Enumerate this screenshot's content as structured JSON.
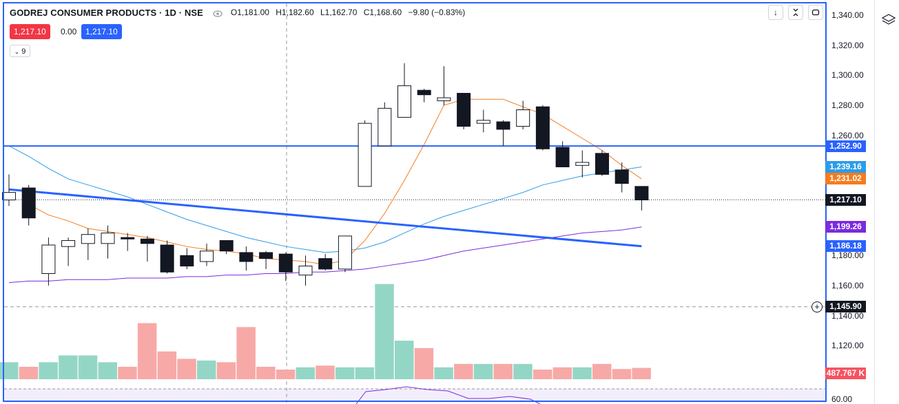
{
  "header": {
    "symbol": "GODREJ CONSUMER PRODUCTS · 1D · NSE",
    "open": "O1,181.00",
    "high": "H1,182.60",
    "low": "L1,162.70",
    "close": "C1,168.60",
    "change": "−9.80 (−0.83%)"
  },
  "pills": {
    "sell": "1,217.10",
    "spread": "0.00",
    "buy": "1,217.10"
  },
  "indicator_count": "9",
  "axis_labels": [
    "1,340.00",
    "1,320.00",
    "1,300.00",
    "1,280.00",
    "1,260.00",
    "1,180.00",
    "1,160.00",
    "1,140.00",
    "1,120.00",
    "60.00"
  ],
  "price_tags": {
    "line_level": "1,252.90",
    "ma_blue": "1,239.16",
    "ma_orange": "1,231.02",
    "last": "1,217.10",
    "ma_purple": "1,199.26",
    "trend": "1,186.18",
    "crosshair": "1,145.90",
    "volume": "487.767 K"
  },
  "colors": {
    "up": "#ffffff",
    "down": "#131722",
    "vol_up": "#94d6c6",
    "vol_down": "#f7a9a7",
    "accent": "#2962ff",
    "orange": "#f57c1f",
    "lightblue": "#2d9ce8",
    "purple": "#7b2bdc"
  },
  "chart_data": {
    "type": "candlestick",
    "ylim": [
      1110,
      1345
    ],
    "candles": [
      {
        "o": 1217,
        "h": 1234,
        "l": 1213,
        "c": 1222
      },
      {
        "o": 1225,
        "h": 1227,
        "l": 1200,
        "c": 1205
      },
      {
        "o": 1168,
        "h": 1192,
        "l": 1160,
        "c": 1187
      },
      {
        "o": 1186,
        "h": 1192,
        "l": 1173,
        "c": 1190
      },
      {
        "o": 1188,
        "h": 1198,
        "l": 1177,
        "c": 1194
      },
      {
        "o": 1188,
        "h": 1200,
        "l": 1178,
        "c": 1195
      },
      {
        "o": 1192,
        "h": 1195,
        "l": 1183,
        "c": 1191
      },
      {
        "o": 1191,
        "h": 1193,
        "l": 1176,
        "c": 1188
      },
      {
        "o": 1187,
        "h": 1190,
        "l": 1168,
        "c": 1169
      },
      {
        "o": 1180,
        "h": 1185,
        "l": 1171,
        "c": 1173
      },
      {
        "o": 1176,
        "h": 1188,
        "l": 1173,
        "c": 1183
      },
      {
        "o": 1190,
        "h": 1190,
        "l": 1181,
        "c": 1183
      },
      {
        "o": 1182,
        "h": 1186,
        "l": 1170,
        "c": 1176
      },
      {
        "o": 1182,
        "h": 1183,
        "l": 1171,
        "c": 1178
      },
      {
        "o": 1181,
        "h": 1182,
        "l": 1163,
        "c": 1169
      },
      {
        "o": 1167,
        "h": 1180,
        "l": 1160,
        "c": 1173
      },
      {
        "o": 1178,
        "h": 1181,
        "l": 1170,
        "c": 1171
      },
      {
        "o": 1171,
        "h": 1192,
        "l": 1169,
        "c": 1193
      },
      {
        "o": 1226,
        "h": 1270,
        "l": 1226,
        "c": 1268
      },
      {
        "o": 1253,
        "h": 1282,
        "l": 1253,
        "c": 1278
      },
      {
        "o": 1272,
        "h": 1308,
        "l": 1272,
        "c": 1293
      },
      {
        "o": 1290,
        "h": 1291,
        "l": 1282,
        "c": 1287
      },
      {
        "o": 1283,
        "h": 1306,
        "l": 1280,
        "c": 1285
      },
      {
        "o": 1288,
        "h": 1288,
        "l": 1264,
        "c": 1266
      },
      {
        "o": 1268,
        "h": 1277,
        "l": 1262,
        "c": 1270
      },
      {
        "o": 1269,
        "h": 1270,
        "l": 1253,
        "c": 1264
      },
      {
        "o": 1266,
        "h": 1283,
        "l": 1264,
        "c": 1277
      },
      {
        "o": 1279,
        "h": 1280,
        "l": 1250,
        "c": 1251
      },
      {
        "o": 1252,
        "h": 1256,
        "l": 1239,
        "c": 1239
      },
      {
        "o": 1240,
        "h": 1250,
        "l": 1232,
        "c": 1242
      },
      {
        "o": 1248,
        "h": 1250,
        "l": 1233,
        "c": 1234
      },
      {
        "o": 1237,
        "h": 1242,
        "l": 1222,
        "c": 1228
      },
      {
        "o": 1226,
        "h": 1226,
        "l": 1210,
        "c": 1217
      }
    ],
    "volume": [
      0.3,
      0.22,
      0.3,
      0.42,
      0.42,
      0.3,
      0.22,
      0.99,
      0.49,
      0.36,
      0.33,
      0.3,
      0.92,
      0.22,
      0.17,
      0.21,
      0.24,
      0.21,
      0.21,
      1.68,
      0.68,
      0.55,
      0.21,
      0.27,
      0.27,
      0.27,
      0.27,
      0.17,
      0.21,
      0.21,
      0.27,
      0.18,
      0.2
    ],
    "volume_max": 1.7,
    "ma_orange": [
      null,
      1214,
      1207,
      1203,
      1198,
      1196,
      1194,
      1192,
      1189,
      1186,
      1184,
      1183,
      1181,
      1178,
      1177,
      1176,
      1174,
      1177,
      1190,
      1208,
      1230,
      1254,
      1280,
      1284,
      1284,
      1284,
      1279,
      1274,
      1266,
      1258,
      1250,
      1240,
      1231
    ],
    "ma_blue": [
      1253,
      1246,
      1238,
      1231,
      1227,
      1223,
      1219,
      1214,
      1209,
      1204,
      1200,
      1196,
      1192,
      1189,
      1186,
      1184,
      1182,
      1183,
      1185,
      1189,
      1195,
      1201,
      1206,
      1210,
      1214,
      1218,
      1222,
      1227,
      1230,
      1233,
      1235,
      1237,
      1239
    ],
    "ma_purple": [
      1162,
      1163,
      1163,
      1164,
      1164,
      1164,
      1165,
      1165,
      1165,
      1166,
      1166,
      1167,
      1167,
      1168,
      1168,
      1169,
      1169,
      1170,
      1171,
      1173,
      1175,
      1177,
      1180,
      1183,
      1185,
      1187,
      1189,
      1191,
      1193,
      1195,
      1196,
      1197,
      1199
    ],
    "hline": 1252.9,
    "trend_start": 1224,
    "trend_end": 1186.18,
    "last_price": 1217.1,
    "crosshair_price": 1145.9,
    "crosshair_index": 14
  }
}
